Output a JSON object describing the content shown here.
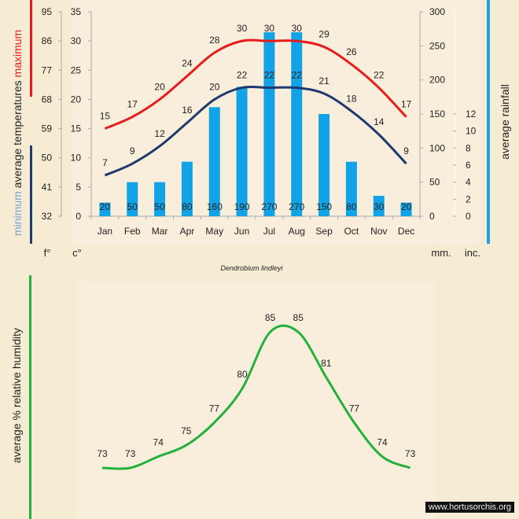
{
  "chart_data": [
    {
      "type": "bar+line",
      "title": "Dendrobium lindleyi",
      "categories": [
        "Jan",
        "Feb",
        "Mar",
        "Apr",
        "May",
        "Jun",
        "Jul",
        "Aug",
        "Sep",
        "Oct",
        "Nov",
        "Dec"
      ],
      "series": [
        {
          "name": "maximum",
          "kind": "line",
          "axis": "c",
          "color": "#e81c1c",
          "values": [
            15,
            17,
            20,
            24,
            28,
            30,
            30,
            30,
            29,
            26,
            22,
            17
          ]
        },
        {
          "name": "minimum",
          "kind": "line",
          "axis": "c",
          "color": "#1f3a6e",
          "values": [
            7,
            9,
            12,
            16,
            20,
            22,
            22,
            22,
            21,
            18,
            14,
            9
          ]
        },
        {
          "name": "average rainfall",
          "kind": "bar",
          "axis": "mm",
          "color": "#12a3e6",
          "values": [
            20,
            50,
            50,
            80,
            160,
            190,
            270,
            270,
            150,
            80,
            30,
            20
          ]
        }
      ],
      "axes": {
        "f": {
          "unit": "f°",
          "ticks": [
            "32",
            "41",
            "50",
            "59",
            "68",
            "77",
            "86",
            "95"
          ]
        },
        "c": {
          "unit": "c°",
          "ticks": [
            "0",
            "5",
            "10",
            "15",
            "20",
            "25",
            "30",
            "35"
          ],
          "range": [
            0,
            35
          ]
        },
        "mm": {
          "unit": "mm.",
          "ticks": [
            "0",
            "50",
            "100",
            "150",
            "200",
            "250",
            "300"
          ],
          "range": [
            0,
            300
          ]
        },
        "inc": {
          "unit": "inc.",
          "ticks": [
            "0",
            "2",
            "4",
            "6",
            "8",
            "10",
            "12"
          ],
          "range": [
            0,
            12
          ]
        }
      },
      "left_label": {
        "minimum": "minimum",
        "average": "average",
        "temperatures": "temperatures",
        "maximum": "maximum"
      },
      "right_label": "average rainfall"
    },
    {
      "type": "line",
      "categories": [
        "Jan",
        "Feb",
        "Mar",
        "Apr",
        "May",
        "Jun",
        "Jul",
        "Aug",
        "Sep",
        "Oct",
        "Nov",
        "Dec"
      ],
      "series": [
        {
          "name": "average % relative humidity",
          "color": "#22b13c",
          "values": [
            73,
            73,
            74,
            75,
            77,
            80,
            85,
            85,
            81,
            77,
            74,
            73
          ]
        }
      ],
      "ylabel": "average %  relative humidity"
    }
  ],
  "watermark": "www.hortusorchis.org",
  "colors": {
    "max": "#e81c1c",
    "min": "#1f3a6e",
    "rain": "#12a3e6",
    "humidity": "#22b13c",
    "minLabel": "#7aa4d8"
  }
}
